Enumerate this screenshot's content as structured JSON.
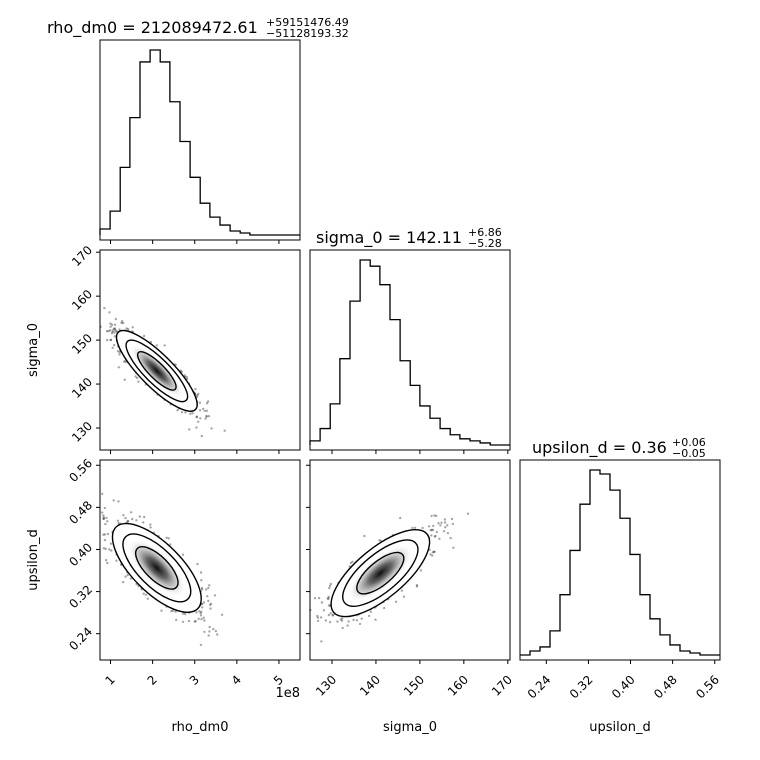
{
  "chart_data": {
    "type": "corner",
    "parameters": [
      "rho_dm0",
      "sigma_0",
      "upsilon_d"
    ],
    "x_offset_label": "1e8",
    "titles": [
      {
        "param": "rho_dm0",
        "text": "rho_dm0 = 212089472.61",
        "plus": "+59151476.49",
        "minus": "−51128193.32"
      },
      {
        "param": "sigma_0",
        "text": "sigma_0 = 142.11",
        "plus": "+6.86",
        "minus": "−5.28"
      },
      {
        "param": "upsilon_d",
        "text": "upsilon_d = 0.36",
        "plus": "+0.06",
        "minus": "−0.05"
      }
    ],
    "axes": {
      "rho_dm0": {
        "range": [
          0.75,
          5.5
        ],
        "ticks": [
          1,
          2,
          3,
          4,
          5
        ],
        "tick_labels": [
          "1",
          "2",
          "3",
          "4",
          "5"
        ],
        "unit_scale": "1e8"
      },
      "sigma_0": {
        "range": [
          125,
          170.5
        ],
        "ticks": [
          130,
          140,
          150,
          160,
          170
        ],
        "tick_labels": [
          "130",
          "140",
          "150",
          "160",
          "170"
        ]
      },
      "upsilon_d": {
        "range": [
          0.19,
          0.57
        ],
        "ticks": [
          0.24,
          0.32,
          0.4,
          0.48,
          0.56
        ],
        "tick_labels": [
          "0.24",
          "0.32",
          "0.40",
          "0.48",
          "0.56"
        ]
      }
    },
    "histograms": {
      "rho_dm0": {
        "edges": [
          0.75,
          0.99,
          1.23,
          1.46,
          1.7,
          1.94,
          2.18,
          2.41,
          2.65,
          2.89,
          3.13,
          3.36,
          3.6,
          3.84,
          4.08,
          4.31,
          4.55,
          4.79,
          5.03,
          5.26,
          5.5
        ],
        "counts": [
          3,
          12,
          34,
          59,
          87,
          93,
          87,
          67,
          47,
          29,
          16,
          9,
          5,
          2,
          1,
          0,
          0,
          0,
          0,
          0
        ]
      },
      "sigma_0": {
        "edges": [
          125.0,
          127.3,
          129.6,
          131.8,
          134.1,
          136.4,
          138.7,
          140.9,
          143.2,
          145.5,
          147.8,
          150.0,
          152.3,
          154.6,
          156.9,
          159.1,
          161.4,
          163.7,
          166.0,
          168.2,
          170.5
        ],
        "counts": [
          2,
          8,
          20,
          42,
          70,
          90,
          87,
          78,
          61,
          41,
          29,
          19,
          13,
          8,
          5,
          3,
          2,
          1,
          0,
          0
        ]
      },
      "upsilon_d": {
        "edges": [
          0.19,
          0.209,
          0.228,
          0.247,
          0.266,
          0.285,
          0.304,
          0.323,
          0.342,
          0.361,
          0.38,
          0.399,
          0.418,
          0.437,
          0.456,
          0.475,
          0.494,
          0.513,
          0.532,
          0.551,
          0.57
        ],
        "counts": [
          0,
          2,
          4,
          12,
          30,
          52,
          75,
          92,
          90,
          82,
          68,
          50,
          30,
          18,
          10,
          5,
          2,
          1,
          0,
          0
        ]
      }
    }
  }
}
